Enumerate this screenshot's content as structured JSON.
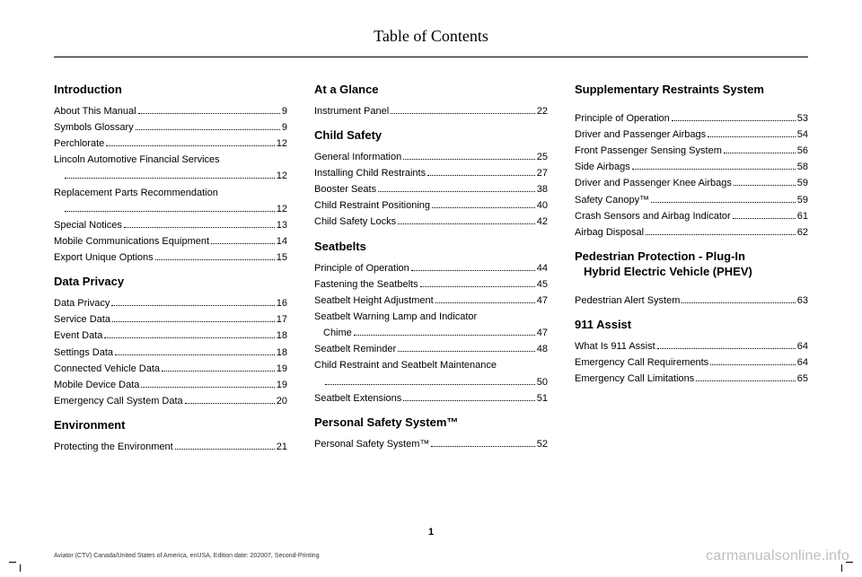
{
  "header": {
    "title": "Table of Contents"
  },
  "columns": [
    {
      "sections": [
        {
          "title": "Introduction",
          "entries": [
            {
              "label": "About This Manual",
              "page": "9"
            },
            {
              "label": "Symbols Glossary",
              "page": "9"
            },
            {
              "label": "Perchlorate",
              "page": "12"
            },
            {
              "label": "Lincoln Automotive Financial Services",
              "cont": "",
              "page": "12"
            },
            {
              "label": "Replacement Parts Recommendation",
              "cont": "",
              "page": "12"
            },
            {
              "label": "Special Notices",
              "page": "13"
            },
            {
              "label": "Mobile Communications Equipment",
              "page": "14"
            },
            {
              "label": "Export Unique Options",
              "page": "15"
            }
          ]
        },
        {
          "title": "Data Privacy",
          "entries": [
            {
              "label": "Data Privacy",
              "page": "16"
            },
            {
              "label": "Service Data",
              "page": "17"
            },
            {
              "label": "Event Data",
              "page": "18"
            },
            {
              "label": "Settings Data",
              "page": "18"
            },
            {
              "label": "Connected Vehicle Data",
              "page": "19"
            },
            {
              "label": "Mobile Device Data",
              "page": "19"
            },
            {
              "label": "Emergency Call System Data",
              "page": "20"
            }
          ]
        },
        {
          "title": "Environment",
          "entries": [
            {
              "label": "Protecting the Environment",
              "page": "21"
            }
          ]
        }
      ]
    },
    {
      "sections": [
        {
          "title": "At a Glance",
          "entries": [
            {
              "label": "Instrument Panel",
              "page": "22"
            }
          ]
        },
        {
          "title": "Child Safety",
          "entries": [
            {
              "label": "General Information",
              "page": "25"
            },
            {
              "label": "Installing Child Restraints",
              "page": "27"
            },
            {
              "label": "Booster Seats",
              "page": "38"
            },
            {
              "label": "Child Restraint Positioning",
              "page": "40"
            },
            {
              "label": "Child Safety Locks",
              "page": "42"
            }
          ]
        },
        {
          "title": "Seatbelts",
          "entries": [
            {
              "label": "Principle of Operation",
              "page": "44"
            },
            {
              "label": "Fastening the Seatbelts",
              "page": "45"
            },
            {
              "label": "Seatbelt Height Adjustment",
              "page": "47"
            },
            {
              "label": "Seatbelt Warning Lamp and Indicator",
              "cont": "Chime",
              "page": "47"
            },
            {
              "label": "Seatbelt Reminder",
              "page": "48"
            },
            {
              "label": "Child Restraint and Seatbelt Maintenance",
              "cont": "",
              "page": "50"
            },
            {
              "label": "Seatbelt Extensions",
              "page": "51"
            }
          ]
        },
        {
          "title": "Personal Safety System™",
          "entries": [
            {
              "label": "Personal Safety System™",
              "page": "52"
            }
          ]
        }
      ]
    },
    {
      "sections": [
        {
          "title": "Supplementary Restraints System",
          "gap": true,
          "entries": [
            {
              "label": "Principle of Operation",
              "page": "53"
            },
            {
              "label": "Driver and Passenger Airbags",
              "page": "54"
            },
            {
              "label": "Front Passenger Sensing System",
              "page": "56"
            },
            {
              "label": "Side Airbags",
              "page": "58"
            },
            {
              "label": "Driver and Passenger Knee Airbags",
              "page": "59"
            },
            {
              "label": "Safety Canopy™",
              "page": "59"
            },
            {
              "label": "Crash Sensors and Airbag Indicator",
              "page": "61"
            },
            {
              "label": "Airbag Disposal",
              "page": "62"
            }
          ]
        },
        {
          "title": "Pedestrian Protection - Plug-In Hybrid Electric Vehicle (PHEV)",
          "titleIndent": true,
          "gap": true,
          "entries": [
            {
              "label": "Pedestrian Alert System",
              "page": "63"
            }
          ]
        },
        {
          "title": "911 Assist",
          "entries": [
            {
              "label": "What Is 911 Assist",
              "page": "64"
            },
            {
              "label": "Emergency Call Requirements",
              "page": "64"
            },
            {
              "label": "Emergency Call Limitations",
              "page": "65"
            }
          ]
        }
      ]
    }
  ],
  "pageNumber": "1",
  "footerLeft": "Aviator (CTV) Canada/United States of America, enUSA, Edition date: 202007, Second-Printing",
  "footerRight": "carmanualsonline.info"
}
